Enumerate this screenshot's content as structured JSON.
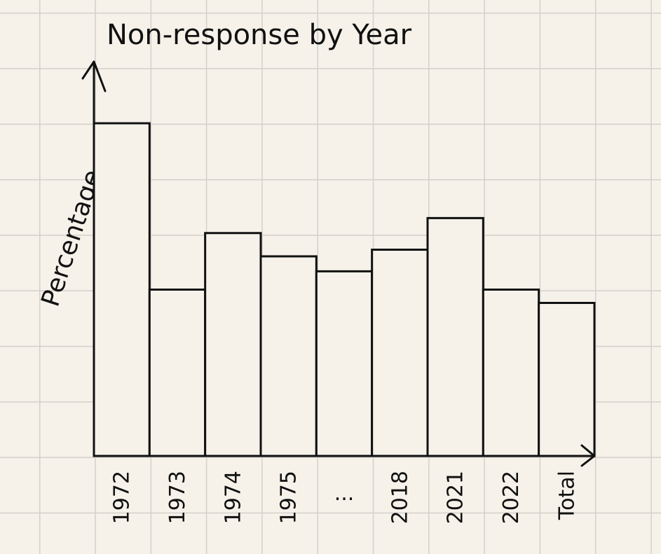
{
  "chart_data": {
    "type": "bar",
    "title": "Non-response by Year",
    "xlabel": "",
    "ylabel": "Percentage",
    "categories": [
      "1972",
      "1973",
      "1974",
      "1975",
      "...",
      "2018",
      "2021",
      "2022",
      "Total"
    ],
    "values": [
      100,
      50,
      67,
      60,
      55.5,
      62,
      71.5,
      50,
      46
    ],
    "ylim": [
      0,
      100
    ],
    "grid": true,
    "legend": "none",
    "colors": {
      "bar_fill": "#f6f2ea",
      "bar_stroke": "#111111"
    }
  }
}
